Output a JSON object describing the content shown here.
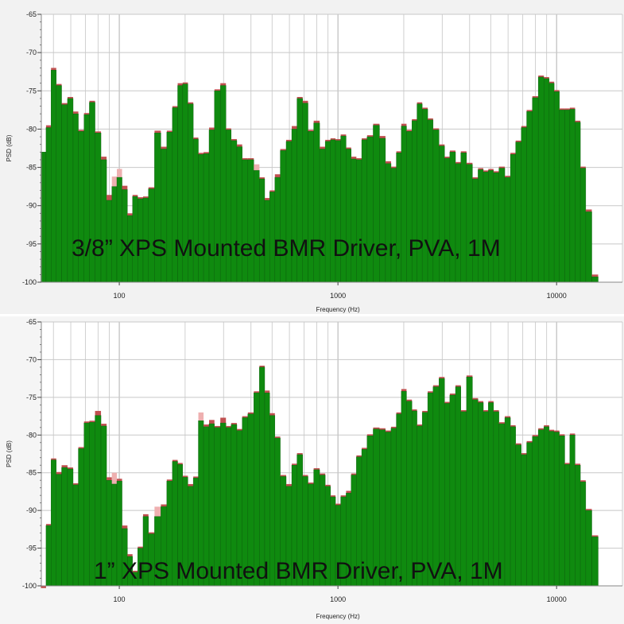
{
  "chart_data": [
    {
      "type": "bar",
      "overlay_title": "3/8” XPS Mounted BMR Driver, PVA, 1M",
      "xlabel": "Frequency (Hz)",
      "ylabel": "PSD (dB)",
      "x_scale": "log",
      "xlim": [
        44,
        20000
      ],
      "ylim": [
        -100,
        -65
      ],
      "yticks": [
        -65,
        -70,
        -75,
        -80,
        -85,
        -90,
        -95,
        -100
      ],
      "xticks": [
        100,
        1000,
        10000
      ],
      "grid": true,
      "colors": {
        "bar": "#0f8a0f",
        "bar_edge": "#0a5a0a",
        "peak_dark": "#c05050",
        "peak_light": "#eeb0b0"
      },
      "freqs": [
        45,
        47.5,
        50,
        53,
        56,
        60,
        63,
        67,
        71,
        75,
        80,
        85,
        90,
        95,
        100,
        106,
        112,
        118,
        125,
        132,
        140,
        150,
        160,
        170,
        180,
        190,
        200,
        212,
        224,
        236,
        250,
        265,
        280,
        300,
        315,
        335,
        355,
        375,
        400,
        425,
        450,
        475,
        500,
        530,
        560,
        600,
        630,
        670,
        710,
        750,
        800,
        850,
        900,
        950,
        1000,
        1060,
        1120,
        1180,
        1250,
        1320,
        1400,
        1500,
        1600,
        1700,
        1800,
        1900,
        2000,
        2120,
        2240,
        2360,
        2500,
        2650,
        2800,
        3000,
        3150,
        3350,
        3550,
        3750,
        4000,
        4250,
        4500,
        4750,
        5000,
        5300,
        5600,
        6000,
        6300,
        6700,
        7100,
        7500,
        8000,
        8500,
        9000,
        9500,
        10000,
        10600,
        11200,
        11800,
        12500,
        13200,
        14000,
        15000,
        16000,
        17000
      ],
      "series": [
        {
          "values": [
            -83,
            -79.8,
            -72.3,
            -74.3,
            -76.8,
            -76,
            -78,
            -80.3,
            -78.1,
            -76.5,
            -80.5,
            -84,
            -89.3,
            -87.5,
            -86.3,
            -87.9,
            -91.3,
            -88.8,
            -89.1,
            -89,
            -87.8,
            -80.5,
            -82.6,
            -80.4,
            -77.2,
            -74.3,
            -74.1,
            -76.7,
            -81.3,
            -83.3,
            -83.2,
            -80.1,
            -75,
            -74.3,
            -80.1,
            -81.5,
            -82.3,
            -84,
            -84,
            -85.4,
            -86.5,
            -89.3,
            -88.2,
            -86.3,
            -82.8,
            -81.6,
            -80,
            -76,
            -76.6,
            -80.3,
            -79.2,
            -82.6,
            -81.6,
            -81.4,
            -81.5,
            -80.9,
            -82.6,
            -83.9,
            -84,
            -81.4,
            -81,
            -79.5,
            -81.2,
            -84.5,
            -85.1,
            -83.1,
            -79.6,
            -80.3,
            -78.9,
            -76.7,
            -77.4,
            -78.8,
            -80.1,
            -82.2,
            -83.8,
            -83,
            -84.5,
            -83.1,
            -84.6,
            -86.5,
            -85.3,
            -85.6,
            -85.4,
            -85.7,
            -85.1,
            -86.3,
            -83.3,
            -81.7,
            -79.8,
            -77.7,
            -75.9,
            -73.2,
            -73.4,
            -74,
            -75.1,
            -77.5,
            -77.5,
            -77.4,
            -79.1,
            -85.1,
            -90.8,
            -99.3
          ],
          "peaks": [
            -83,
            -79.5,
            -72.0,
            -74.1,
            -76.6,
            -75.8,
            -77.7,
            -80.1,
            -77.9,
            -76.3,
            -80.3,
            -83.6,
            -88.6,
            -86.2,
            -85.2,
            -87.4,
            -91.0,
            -88.6,
            -88.9,
            -88.8,
            -87.6,
            -80.2,
            -82.3,
            -80.2,
            -77.0,
            -74.0,
            -73.9,
            -76.5,
            -81.1,
            -83.1,
            -83.0,
            -79.8,
            -74.8,
            -74.0,
            -79.9,
            -81.3,
            -82.0,
            -83.8,
            -83.8,
            -84.6,
            -86.3,
            -89.0,
            -88.0,
            -85.9,
            -82.6,
            -81.4,
            -79.6,
            -75.8,
            -76.3,
            -80.1,
            -78.9,
            -82.3,
            -81.4,
            -81.2,
            -81.3,
            -80.7,
            -82.4,
            -83.6,
            -83.8,
            -81.2,
            -80.8,
            -79.3,
            -80.9,
            -84.2,
            -84.9,
            -82.9,
            -79.3,
            -80.1,
            -78.7,
            -76.5,
            -77.2,
            -78.6,
            -79.9,
            -82.0,
            -83.6,
            -82.8,
            -84.3,
            -82.9,
            -84.4,
            -86.3,
            -85.1,
            -85.4,
            -85.2,
            -85.5,
            -84.9,
            -86.1,
            -83.1,
            -81.5,
            -79.6,
            -77.5,
            -75.7,
            -73.0,
            -73.2,
            -73.8,
            -74.9,
            -77.3,
            -77.3,
            -77.2,
            -78.9,
            -84.9,
            -90.5,
            -99.0
          ]
        }
      ]
    },
    {
      "type": "bar",
      "overlay_title": "1” XPS Mounted BMR Driver, PVA, 1M",
      "xlabel": "Frequency (Hz)",
      "ylabel": "PSD (dB)",
      "x_scale": "log",
      "xlim": [
        44,
        20000
      ],
      "ylim": [
        -100,
        -65
      ],
      "yticks": [
        -65,
        -70,
        -75,
        -80,
        -85,
        -90,
        -95,
        -100
      ],
      "xticks": [
        100,
        1000,
        10000
      ],
      "grid": true,
      "colors": {
        "bar": "#0f8a0f",
        "bar_edge": "#0a5a0a",
        "peak_dark": "#c05050",
        "peak_light": "#eeb0b0"
      },
      "freqs": [
        45,
        47.5,
        50,
        53,
        56,
        60,
        63,
        67,
        71,
        75,
        80,
        85,
        90,
        95,
        100,
        106,
        112,
        118,
        125,
        132,
        140,
        150,
        160,
        170,
        180,
        190,
        200,
        212,
        224,
        236,
        250,
        265,
        280,
        300,
        315,
        335,
        355,
        375,
        400,
        425,
        450,
        475,
        500,
        530,
        560,
        600,
        630,
        670,
        710,
        750,
        800,
        850,
        900,
        950,
        1000,
        1060,
        1120,
        1180,
        1250,
        1320,
        1400,
        1500,
        1600,
        1700,
        1800,
        1900,
        2000,
        2120,
        2240,
        2360,
        2500,
        2650,
        2800,
        3000,
        3150,
        3350,
        3550,
        3750,
        4000,
        4250,
        4500,
        4750,
        5000,
        5300,
        5600,
        6000,
        6300,
        6700,
        7100,
        7500,
        8000,
        8500,
        9000,
        9500,
        10000,
        10600,
        11200,
        11800,
        12500,
        13200,
        14000,
        15000,
        16000,
        17000
      ],
      "series": [
        {
          "values": [
            -100.3,
            -92,
            -83.3,
            -85.2,
            -84.3,
            -84.5,
            -86.6,
            -81.8,
            -78.4,
            -78.3,
            -77.4,
            -78.8,
            -86,
            -86.5,
            -86.1,
            -92.4,
            -96.1,
            -98.2,
            -95,
            -90.8,
            -93.1,
            -90.8,
            -89.5,
            -86.1,
            -83.5,
            -83.9,
            -85.6,
            -86.8,
            -85.7,
            -78.1,
            -78.9,
            -78.5,
            -79,
            -78.4,
            -79,
            -78.6,
            -79.4,
            -77.7,
            -77.2,
            -74.4,
            -71,
            -74.4,
            -77.4,
            -80.4,
            -85.5,
            -86.8,
            -84,
            -82.6,
            -85.5,
            -86.5,
            -84.6,
            -85.3,
            -86.8,
            -88.2,
            -89.3,
            -88.2,
            -87.7,
            -85.3,
            -82.9,
            -81.9,
            -80.1,
            -79.2,
            -79.3,
            -79.6,
            -79.1,
            -77.2,
            -74.2,
            -75.5,
            -76.8,
            -78.8,
            -77,
            -74.4,
            -73.6,
            -72.5,
            -75.8,
            -74.7,
            -73.6,
            -76.9,
            -72.3,
            -75.3,
            -75.7,
            -76.9,
            -75.7,
            -76.9,
            -78.5,
            -77.7,
            -78.9,
            -81.3,
            -82.6,
            -81,
            -80.2,
            -79.3,
            -78.9,
            -79.5,
            -79.6,
            -80.1,
            -83.9,
            -80,
            -84,
            -86.2,
            -90,
            -93.5
          ],
          "peaks": [
            -100.0,
            -91.8,
            -83.1,
            -84.9,
            -84.0,
            -84.3,
            -86.4,
            -81.6,
            -78.2,
            -78.1,
            -76.8,
            -78.5,
            -85.6,
            -85.0,
            -85.8,
            -92.0,
            -95.8,
            -98.0,
            -94.8,
            -90.5,
            -92.9,
            -89.5,
            -89.2,
            -85.9,
            -83.3,
            -83.7,
            -85.4,
            -86.5,
            -85.5,
            -77.0,
            -78.6,
            -78.0,
            -78.8,
            -77.7,
            -78.8,
            -78.4,
            -79.2,
            -77.5,
            -77.0,
            -74.2,
            -70.8,
            -74.1,
            -77.1,
            -80.2,
            -85.3,
            -86.5,
            -83.8,
            -82.4,
            -85.3,
            -86.3,
            -84.4,
            -85.1,
            -86.6,
            -88.0,
            -89.1,
            -88.0,
            -87.4,
            -85.1,
            -82.7,
            -81.7,
            -79.9,
            -79.0,
            -79.1,
            -79.4,
            -78.9,
            -77.0,
            -73.9,
            -75.3,
            -76.6,
            -78.6,
            -76.8,
            -74.2,
            -73.4,
            -72.3,
            -75.6,
            -74.5,
            -73.4,
            -76.7,
            -72.1,
            -75.1,
            -75.5,
            -76.7,
            -75.5,
            -76.7,
            -78.3,
            -77.5,
            -78.7,
            -81.1,
            -82.4,
            -80.8,
            -80.0,
            -79.1,
            -78.7,
            -79.3,
            -79.4,
            -79.9,
            -83.7,
            -79.8,
            -83.8,
            -86.0,
            -89.8,
            -93.3
          ]
        }
      ]
    }
  ]
}
